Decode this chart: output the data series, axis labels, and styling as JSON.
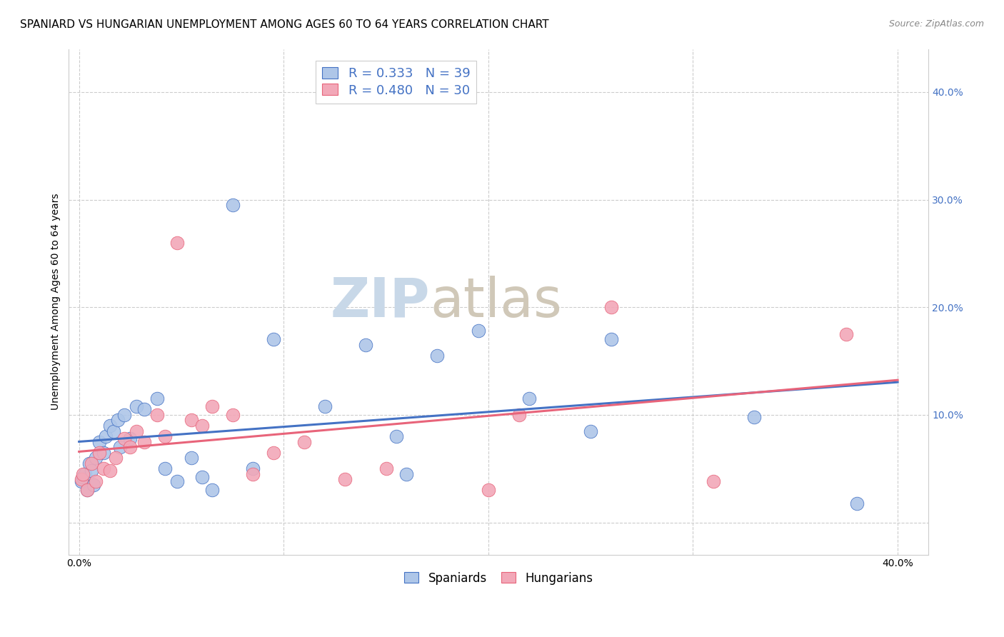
{
  "title": "SPANIARD VS HUNGARIAN UNEMPLOYMENT AMONG AGES 60 TO 64 YEARS CORRELATION CHART",
  "source": "Source: ZipAtlas.com",
  "ylabel": "Unemployment Among Ages 60 to 64 years",
  "y_ticks": [
    0.0,
    0.1,
    0.2,
    0.3,
    0.4
  ],
  "y_tick_labels": [
    "",
    "10.0%",
    "20.0%",
    "30.0%",
    "40.0%"
  ],
  "x_tick_labels": [
    "0.0%",
    "",
    "",
    "",
    "40.0%"
  ],
  "x_ticks": [
    0.0,
    0.1,
    0.2,
    0.3,
    0.4
  ],
  "xlim": [
    -0.005,
    0.415
  ],
  "ylim": [
    -0.03,
    0.44
  ],
  "spaniards_x": [
    0.001,
    0.002,
    0.003,
    0.004,
    0.005,
    0.006,
    0.007,
    0.008,
    0.01,
    0.012,
    0.013,
    0.015,
    0.017,
    0.019,
    0.02,
    0.022,
    0.025,
    0.028,
    0.032,
    0.038,
    0.042,
    0.048,
    0.055,
    0.06,
    0.065,
    0.075,
    0.085,
    0.095,
    0.12,
    0.14,
    0.155,
    0.16,
    0.175,
    0.195,
    0.22,
    0.25,
    0.26,
    0.33,
    0.38
  ],
  "spaniards_y": [
    0.038,
    0.042,
    0.045,
    0.03,
    0.055,
    0.048,
    0.035,
    0.06,
    0.075,
    0.065,
    0.08,
    0.09,
    0.085,
    0.095,
    0.07,
    0.1,
    0.078,
    0.108,
    0.105,
    0.115,
    0.05,
    0.038,
    0.06,
    0.042,
    0.03,
    0.295,
    0.05,
    0.17,
    0.108,
    0.165,
    0.08,
    0.045,
    0.155,
    0.178,
    0.115,
    0.085,
    0.17,
    0.098,
    0.018
  ],
  "hungarians_x": [
    0.001,
    0.002,
    0.004,
    0.006,
    0.008,
    0.01,
    0.012,
    0.015,
    0.018,
    0.022,
    0.025,
    0.028,
    0.032,
    0.038,
    0.042,
    0.048,
    0.055,
    0.06,
    0.065,
    0.075,
    0.085,
    0.095,
    0.11,
    0.13,
    0.15,
    0.2,
    0.215,
    0.26,
    0.31,
    0.375
  ],
  "hungarians_y": [
    0.04,
    0.045,
    0.03,
    0.055,
    0.038,
    0.065,
    0.05,
    0.048,
    0.06,
    0.078,
    0.07,
    0.085,
    0.075,
    0.1,
    0.08,
    0.26,
    0.095,
    0.09,
    0.108,
    0.1,
    0.045,
    0.065,
    0.075,
    0.04,
    0.05,
    0.03,
    0.1,
    0.2,
    0.038,
    0.175
  ],
  "blue_color": "#aec6e8",
  "pink_color": "#f2a8b8",
  "blue_line_color": "#4472c4",
  "pink_line_color": "#e8647a",
  "legend_blue_R": "R = 0.333",
  "legend_blue_N": "N = 39",
  "legend_pink_R": "R = 0.480",
  "legend_pink_N": "N = 30",
  "legend_label_blue": "Spaniards",
  "legend_label_pink": "Hungarians",
  "title_fontsize": 11,
  "axis_label_fontsize": 10,
  "tick_fontsize": 10,
  "source_fontsize": 9,
  "legend_fontsize": 13,
  "watermark_zip_color": "#c8d8e8",
  "watermark_atlas_color": "#d0c8b8",
  "watermark_fontsize": 55
}
